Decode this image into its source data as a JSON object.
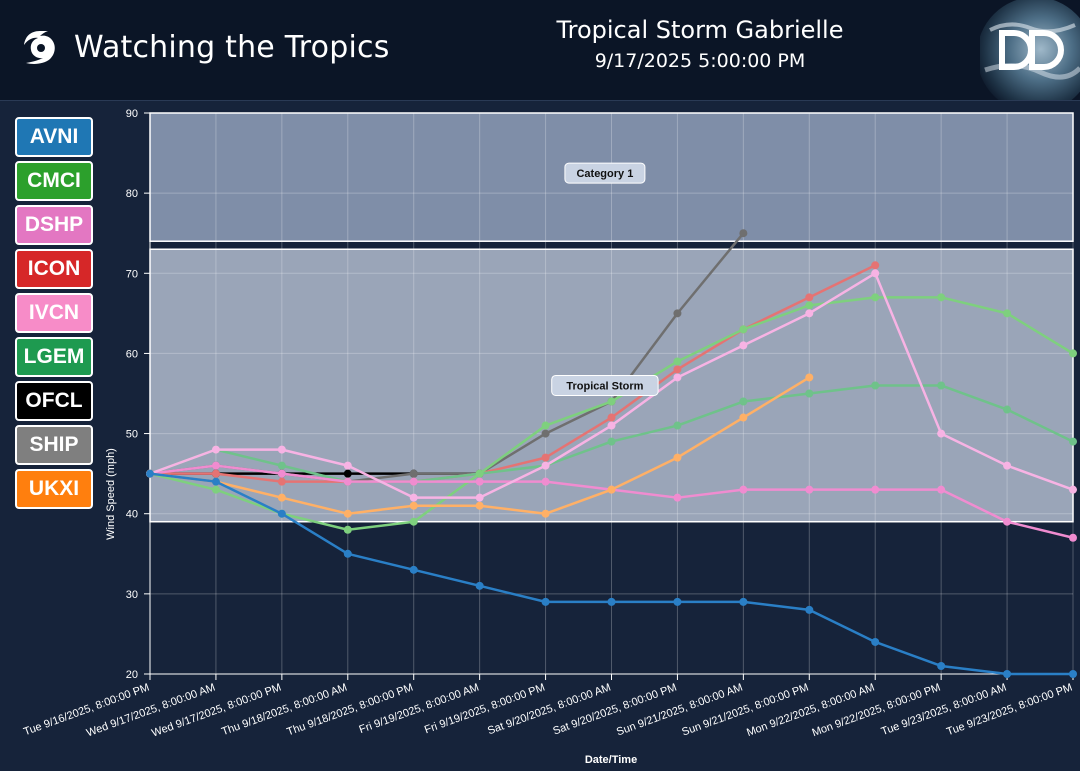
{
  "header": {
    "app_title": "Watching the Tropics",
    "storm_name": "Tropical Storm Gabrielle",
    "timestamp": "9/17/2025 5:00:00 PM",
    "icon": "hurricane-icon",
    "logo": "dd-logo"
  },
  "legend": [
    {
      "label": "AVNI",
      "color": "#1f77b4"
    },
    {
      "label": "CMCI",
      "color": "#2ca02c"
    },
    {
      "label": "DSHP",
      "color": "#e377c2"
    },
    {
      "label": "ICON",
      "color": "#d62728"
    },
    {
      "label": "IVCN",
      "color": "#f78cc8"
    },
    {
      "label": "LGEM",
      "color": "#1e9a50"
    },
    {
      "label": "OFCL",
      "color": "#000000"
    },
    {
      "label": "SHIP",
      "color": "#7f7f7f"
    },
    {
      "label": "UKXI",
      "color": "#ff7f0e"
    }
  ],
  "chart_data": {
    "type": "line",
    "xlabel": "Date/Time",
    "ylabel": "Wind Speed (mph)",
    "ylim": [
      20,
      90
    ],
    "yticks": [
      20,
      30,
      40,
      50,
      60,
      70,
      80,
      90
    ],
    "grid": true,
    "categories": [
      "Tue 9/16/2025, 8:00:00 PM",
      "Wed 9/17/2025, 8:00:00 AM",
      "Wed 9/17/2025, 8:00:00 PM",
      "Thu 9/18/2025, 8:00:00 AM",
      "Thu 9/18/2025, 8:00:00 PM",
      "Fri 9/19/2025, 8:00:00 AM",
      "Fri 9/19/2025, 8:00:00 PM",
      "Sat 9/20/2025, 8:00:00 AM",
      "Sat 9/20/2025, 8:00:00 PM",
      "Sun 9/21/2025, 8:00:00 AM",
      "Sun 9/21/2025, 8:00:00 PM",
      "Mon 9/22/2025, 8:00:00 AM",
      "Mon 9/22/2025, 8:00:00 PM",
      "Tue 9/23/2025, 8:00:00 AM",
      "Tue 9/23/2025, 8:00:00 PM"
    ],
    "bands": [
      {
        "label": "Category 1",
        "from": 74,
        "to": 90,
        "color": "#7f8ea8"
      },
      {
        "label": "Tropical Storm",
        "from": 39,
        "to": 73,
        "color": "#9aa5b8"
      }
    ],
    "series": [
      {
        "name": "OFCL",
        "color": "#000000",
        "values": [
          45,
          45,
          45,
          45,
          45,
          45,
          null,
          null,
          null,
          null,
          null,
          null,
          null,
          null,
          null
        ]
      },
      {
        "name": "SHIP",
        "color": "#6f6f6f",
        "values": [
          45,
          46,
          45,
          44,
          45,
          45,
          50,
          54,
          65,
          75,
          null,
          null,
          null,
          null,
          null
        ]
      },
      {
        "name": "ICON",
        "color": "#e57373",
        "values": [
          45,
          45,
          44,
          44,
          44,
          45,
          47,
          52,
          58,
          63,
          67,
          71,
          null,
          null,
          null
        ]
      },
      {
        "name": "LGEM",
        "color": "#6fc28a",
        "values": [
          45,
          48,
          46,
          44,
          44,
          45,
          46,
          49,
          51,
          54,
          55,
          56,
          56,
          53,
          49
        ]
      },
      {
        "name": "CMCI",
        "color": "#7ed07e",
        "values": [
          45,
          43,
          40,
          38,
          39,
          45,
          51,
          54,
          59,
          63,
          66,
          67,
          67,
          65,
          60
        ]
      },
      {
        "name": "DSHP",
        "color": "#f08cd0",
        "values": [
          45,
          46,
          45,
          44,
          44,
          44,
          44,
          43,
          42,
          43,
          43,
          43,
          43,
          39,
          37
        ]
      },
      {
        "name": "IVCN",
        "color": "#f7b3e4",
        "values": [
          45,
          48,
          48,
          46,
          42,
          42,
          46,
          51,
          57,
          61,
          65,
          70,
          50,
          46,
          43
        ]
      },
      {
        "name": "UKXI",
        "color": "#ffb066",
        "values": [
          45,
          44,
          42,
          40,
          41,
          41,
          40,
          43,
          47,
          52,
          57,
          null,
          null,
          null,
          null
        ]
      },
      {
        "name": "AVNI",
        "color": "#2a7fc6",
        "values": [
          45,
          44,
          40,
          35,
          33,
          31,
          29,
          29,
          29,
          29,
          28,
          24,
          21,
          20,
          20
        ]
      }
    ]
  }
}
